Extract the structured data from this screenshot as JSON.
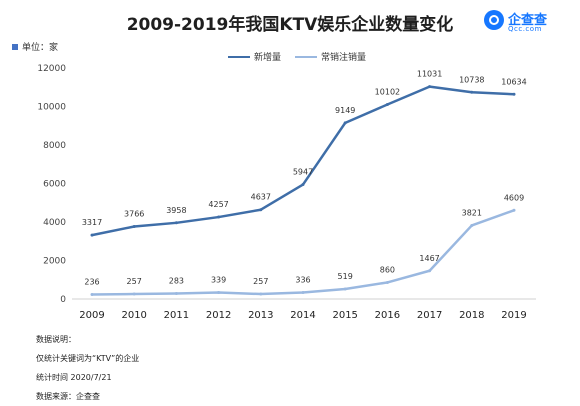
{
  "header": {
    "title": "2009-2019年我国KTV娱乐企业数量变化",
    "unit_label": "单位：家",
    "brand_name": "企查查",
    "brand_sub": "Qcc.com"
  },
  "notes": {
    "heading": "数据说明：",
    "line1": "仅统计关键词为“KTV”的企业",
    "line2": "统计时间 2020/7/21",
    "line3": "数据来源：企查查"
  },
  "colors": {
    "new": "#3f6ea8",
    "cancel": "#9ab8e0",
    "unit_marker": "#4472c4",
    "brand": "#1677ff"
  },
  "chart_data": {
    "type": "line",
    "categories": [
      "2009",
      "2010",
      "2011",
      "2012",
      "2013",
      "2014",
      "2015",
      "2016",
      "2017",
      "2018",
      "2019"
    ],
    "series": [
      {
        "name": "新增量",
        "values": [
          3317,
          3766,
          3958,
          4257,
          4637,
          5947,
          9149,
          10102,
          11031,
          10738,
          10634
        ]
      },
      {
        "name": "常销注销量",
        "values": [
          236,
          257,
          283,
          339,
          257,
          336,
          519,
          860,
          1467,
          3821,
          4609
        ]
      }
    ],
    "ylim": [
      0,
      12000
    ],
    "yticks": [
      0,
      2000,
      4000,
      6000,
      8000,
      10000,
      12000
    ],
    "grid": false,
    "legend_position": "top-center"
  }
}
